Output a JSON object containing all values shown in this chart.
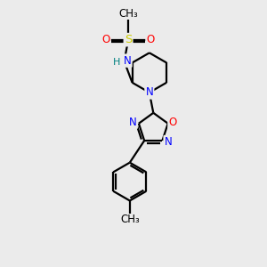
{
  "bg_color": "#ebebeb",
  "atom_colors": {
    "C": "#000000",
    "N": "#0000ff",
    "O": "#ff0000",
    "S": "#cccc00",
    "H": "#008080"
  },
  "bond_color": "#000000",
  "title": ""
}
